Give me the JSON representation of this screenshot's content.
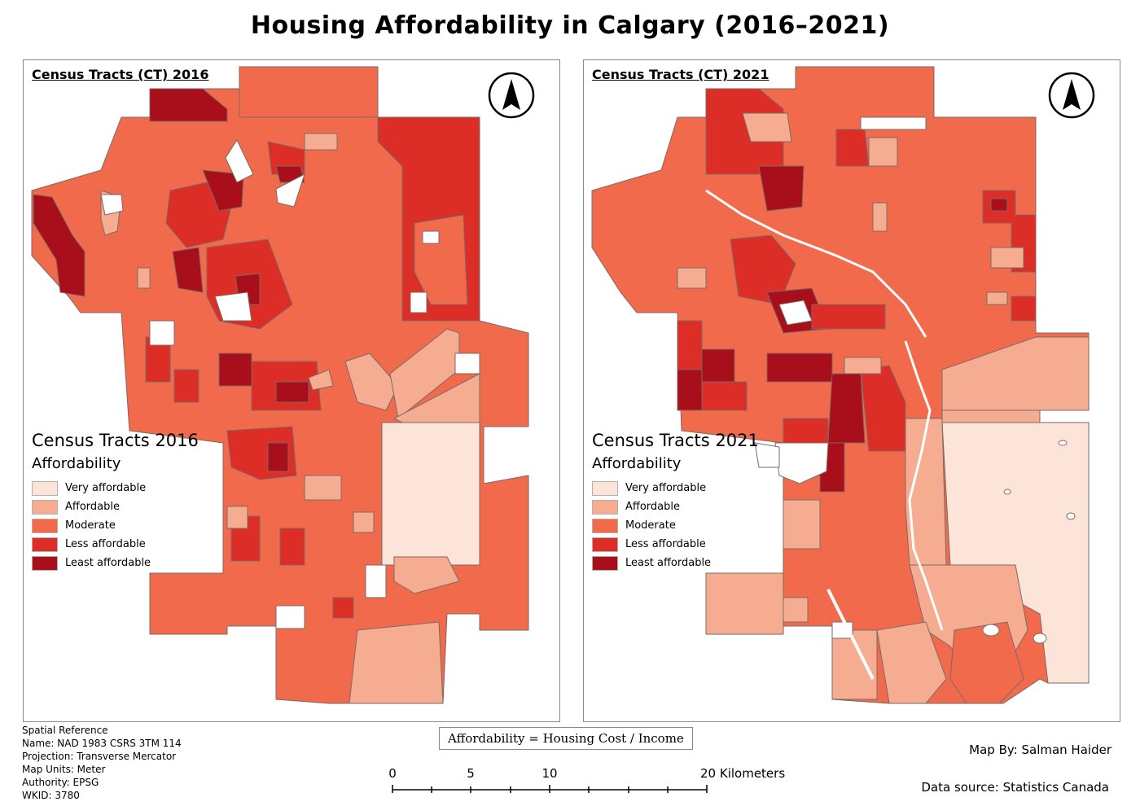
{
  "title": "Housing Affordability in Calgary (2016–2021)",
  "maps": [
    {
      "frame_title": "Census Tracts (CT) 2016",
      "legend_title": "Census Tracts 2016",
      "legend_subtitle": "Affordability"
    },
    {
      "frame_title": "Census Tracts (CT) 2021",
      "legend_title": "Census Tracts 2021",
      "legend_subtitle": "Affordability"
    }
  ],
  "legend": [
    {
      "label": "Very affordable",
      "color": "#fde4d8"
    },
    {
      "label": "Affordable",
      "color": "#f6ac90"
    },
    {
      "label": "Moderate",
      "color": "#f16a4c"
    },
    {
      "label": "Less affordable",
      "color": "#dc2d27"
    },
    {
      "label": "Least affordable",
      "color": "#a90f1b"
    }
  ],
  "spatial_reference": [
    "Spatial Reference",
    "Name: NAD 1983 CSRS 3TM 114",
    "Projection: Transverse Mercator",
    "Map Units: Meter",
    "Authority: EPSG",
    "WKID: 3780"
  ],
  "formula": "Affordability = Housing Cost / Income",
  "scale": {
    "labels": [
      "0",
      "5",
      "10",
      "20 Kilometers"
    ]
  },
  "map_by": "Map By: Salman Haider",
  "data_source": "Data source: Statistics Canada",
  "icons": {
    "north_arrow": "north-arrow-icon"
  }
}
